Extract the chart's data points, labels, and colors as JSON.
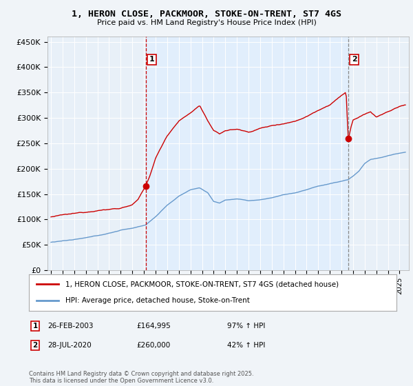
{
  "title_line1": "1, HERON CLOSE, PACKMOOR, STOKE-ON-TRENT, ST7 4GS",
  "title_line2": "Price paid vs. HM Land Registry's House Price Index (HPI)",
  "ylabel_ticks": [
    "£0",
    "£50K",
    "£100K",
    "£150K",
    "£200K",
    "£250K",
    "£300K",
    "£350K",
    "£400K",
    "£450K"
  ],
  "ytick_vals": [
    0,
    50000,
    100000,
    150000,
    200000,
    250000,
    300000,
    350000,
    400000,
    450000
  ],
  "ylim": [
    0,
    460000
  ],
  "xlim_start": 1994.7,
  "xlim_end": 2025.8,
  "vline1_x": 2003.15,
  "vline2_x": 2020.58,
  "sale1_dot_y": 164995,
  "sale2_dot_y": 260000,
  "ann1_label": "1",
  "ann2_label": "2",
  "sale1_date": "26-FEB-2003",
  "sale1_price": "£164,995",
  "sale1_hpi": "97% ↑ HPI",
  "sale2_date": "28-JUL-2020",
  "sale2_price": "£260,000",
  "sale2_hpi": "42% ↑ HPI",
  "legend1_label": "1, HERON CLOSE, PACKMOOR, STOKE-ON-TRENT, ST7 4GS (detached house)",
  "legend2_label": "HPI: Average price, detached house, Stoke-on-Trent",
  "property_color": "#cc0000",
  "hpi_color": "#6699cc",
  "vline1_color": "#cc0000",
  "vline2_color": "#888888",
  "shade_color": "#ddeeff",
  "footer_text": "Contains HM Land Registry data © Crown copyright and database right 2025.\nThis data is licensed under the Open Government Licence v3.0.",
  "background_color": "#f0f4f8",
  "plot_background": "#e8f0f8"
}
